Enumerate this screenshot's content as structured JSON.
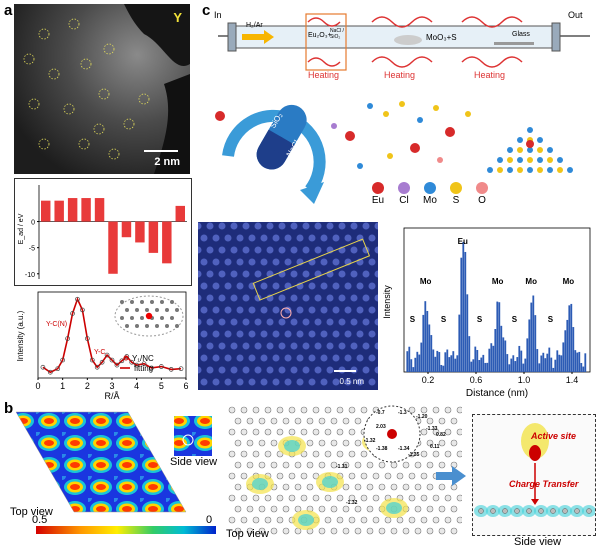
{
  "panels": {
    "a": {
      "label": "a"
    },
    "b": {
      "label": "b"
    },
    "c": {
      "label": "c"
    }
  },
  "stem": {
    "element": "Y",
    "scale_bar": "2 nm"
  },
  "energy_plot": {
    "ylabel": "E_ad / eV",
    "yticks": [
      "0",
      "-5",
      "-10"
    ],
    "values": [
      4,
      4,
      4.5,
      4.5,
      4.5,
      -10,
      -3,
      -4,
      -6,
      -8,
      3
    ],
    "ylim": [
      -11,
      7
    ]
  },
  "exafs_plot": {
    "ylabel": "Intensity (a.u.)",
    "xlabel": "R/Å",
    "xticks": [
      "0",
      "1",
      "2",
      "3",
      "4",
      "5",
      "6"
    ],
    "xlim": [
      0,
      6
    ],
    "annotations": [
      "Y-C(N)",
      "Y-C"
    ],
    "legend": [
      "Y₁/NC",
      "fitting"
    ]
  },
  "charge_density": {
    "top_view": "Top view",
    "side_view": "Side view",
    "colorbar_min": "0.5",
    "colorbar_max": "0"
  },
  "bader": {
    "top_view": "Top view",
    "side_view": "Side view",
    "values": [
      "-0.7",
      "-1.3",
      "-1.20",
      "2.03",
      "-1.33",
      "0.82",
      "-1.32",
      "-1.38",
      "-1.34",
      "0.11",
      "-1.35",
      "-1.31",
      "-1.32"
    ],
    "active_site": "Active site",
    "charge_transfer": "Charge Transfer"
  },
  "cvd": {
    "in_label": "In",
    "out_label": "Out",
    "gas": "H₂/Ar",
    "precursor_1": "Eu₂O₃+",
    "precursor_1b": "NaCl / SiO₂",
    "precursor_2": "MoO₃+S",
    "substrate": "Glass",
    "heating": [
      "Heating",
      "Heating",
      "Heating"
    ]
  },
  "mechanism": {
    "capsule_top": "SiO₂",
    "capsule_bottom": "NaCl",
    "legend": [
      "Eu",
      "Cl",
      "Mo",
      "S",
      "O"
    ],
    "legend_colors": [
      "#d72a2a",
      "#a77cd0",
      "#2f8ad8",
      "#f0c419",
      "#f08a8a"
    ]
  },
  "stm": {
    "scale_bar": "0.5 nm"
  },
  "profile": {
    "ylabel": "Intensity",
    "xlabel": "Distance (nm)",
    "xticks": [
      "0.2",
      "0.6",
      "1.0",
      "1.4"
    ],
    "peak_labels": [
      "Mo",
      "Eu",
      "Mo",
      "Mo",
      "Mo",
      "S",
      "S",
      "S",
      "S",
      "S"
    ]
  },
  "chart_data": [
    {
      "type": "bar",
      "ylabel": "E_ad / eV",
      "values": [
        4,
        4,
        4.5,
        4.5,
        4.5,
        -10,
        -3,
        -4,
        -6,
        -8,
        3
      ],
      "ylim": [
        -11,
        7
      ]
    },
    {
      "type": "line",
      "xlabel": "R/Å",
      "ylabel": "Intensity (a.u.)",
      "xlim": [
        0,
        6
      ],
      "series": [
        {
          "name": "Y₁/NC",
          "x": [
            0.2,
            0.5,
            0.8,
            1.0,
            1.2,
            1.4,
            1.6,
            1.8,
            2.0,
            2.2,
            2.4,
            2.6,
            2.8,
            3.0,
            3.2,
            3.4,
            3.6,
            3.8,
            4.0,
            4.3,
            4.6,
            5.0,
            5.4,
            5.8
          ],
          "y": [
            0.05,
            -0.02,
            0.03,
            0.15,
            0.45,
            0.8,
            1.0,
            0.85,
            0.45,
            0.15,
            0.05,
            0.12,
            0.22,
            0.15,
            0.08,
            0.14,
            0.2,
            0.12,
            0.08,
            0.1,
            0.04,
            0.06,
            0.02,
            0.03
          ]
        },
        {
          "name": "fitting",
          "x": [
            0.2,
            0.5,
            0.8,
            1.0,
            1.2,
            1.4,
            1.6,
            1.8,
            2.0,
            2.2,
            2.4,
            2.6,
            2.8,
            3.0,
            3.2,
            3.4,
            3.6,
            3.8,
            4.0,
            4.3,
            4.6,
            5.0,
            5.4,
            5.8
          ],
          "y": [
            0.05,
            -0.02,
            0.03,
            0.15,
            0.45,
            0.8,
            1.0,
            0.85,
            0.45,
            0.15,
            0.05,
            0.12,
            0.22,
            0.15,
            0.08,
            0.14,
            0.2,
            0.12,
            0.08,
            0.1,
            0.04,
            0.06,
            0.02,
            0.03
          ]
        }
      ]
    },
    {
      "type": "bar",
      "xlabel": "Distance (nm)",
      "ylabel": "Intensity",
      "xlim": [
        0,
        1.55
      ]
    }
  ]
}
